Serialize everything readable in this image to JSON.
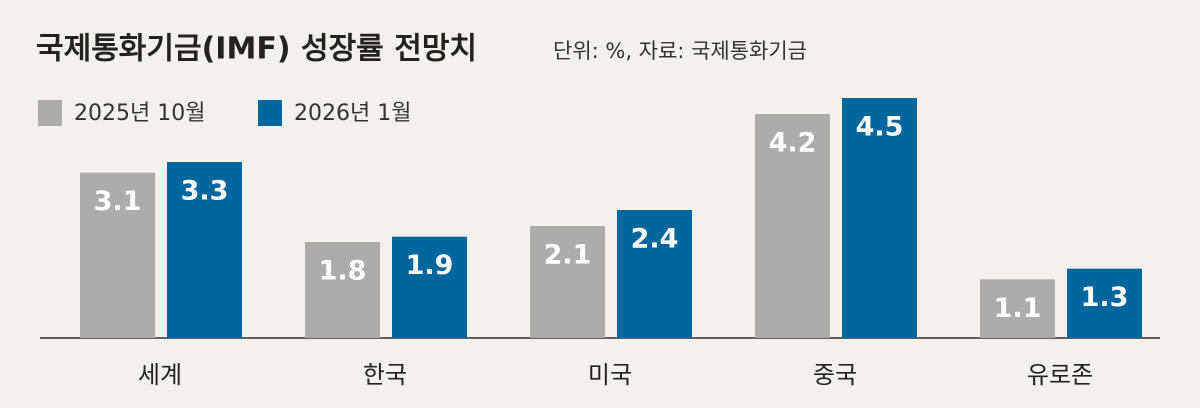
{
  "chart_data": {
    "type": "bar",
    "title": "국제통화기금(IMF) 성장률 전망치",
    "subtitle": "단위: %, 자료: 국제통화기금",
    "categories": [
      "세계",
      "한국",
      "미국",
      "중국",
      "유로존"
    ],
    "series": [
      {
        "name": "2025년 10월",
        "color": "#acacac",
        "values": [
          3.1,
          1.8,
          2.1,
          4.2,
          1.1
        ]
      },
      {
        "name": "2026년 1월",
        "color": "#00679e",
        "values": [
          3.3,
          1.9,
          2.4,
          4.5,
          1.3
        ]
      }
    ]
  }
}
